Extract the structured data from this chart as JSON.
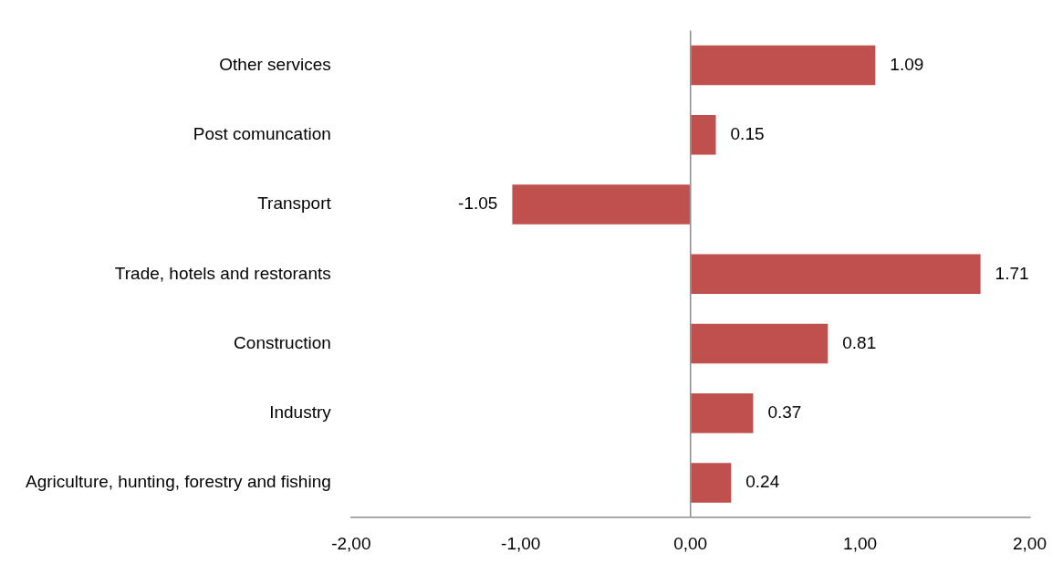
{
  "chart_data": {
    "type": "bar",
    "orientation": "horizontal",
    "categories": [
      "Other services",
      "Post comuncation",
      "Transport",
      "Trade, hotels and restorants",
      "Construction",
      "Industry",
      "Agriculture, hunting, forestry and fishing"
    ],
    "values": [
      1.09,
      0.15,
      -1.05,
      1.71,
      0.81,
      0.37,
      0.24
    ],
    "color": "#c0504d",
    "data_labels": true,
    "xlim": [
      -2,
      2
    ],
    "xticks": [
      {
        "value": -2,
        "label": "-2,00"
      },
      {
        "value": -1,
        "label": "-1,00"
      },
      {
        "value": 0,
        "label": "0,00"
      },
      {
        "value": 1,
        "label": "1,00"
      },
      {
        "value": 2,
        "label": "2,00"
      }
    ]
  }
}
